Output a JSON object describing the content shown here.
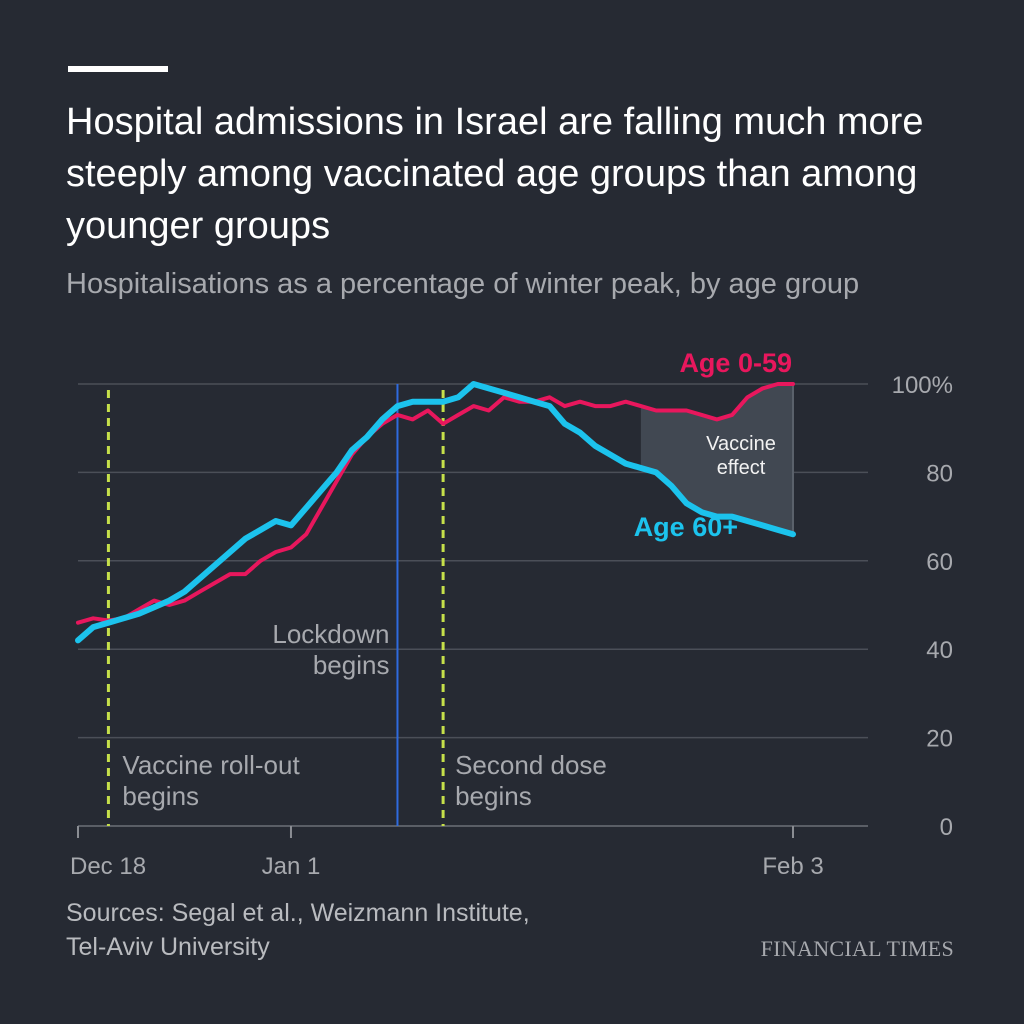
{
  "header": {
    "title": "Hospital admissions in Israel are falling much more steeply among vaccinated age groups than among younger groups",
    "subtitle": "Hospitalisations as a percentage of winter peak, by age group"
  },
  "footer": {
    "source_line1": "Sources: Segal et al., Weizmann Institute,",
    "source_line2": "Tel-Aviv University",
    "brand": "FINANCIAL TIMES"
  },
  "colors": {
    "background": "#262a33",
    "grid": "#4b4f58",
    "axis_text": "#a7a9ae",
    "young": "#e8175d",
    "old": "#1cc3ed",
    "event_dashed": "#c6e04a",
    "lockdown": "#2f6bdf",
    "effect_fill": "#414852"
  },
  "chart_data": {
    "type": "line",
    "x_type": "day_index",
    "x_range": [
      0,
      47
    ],
    "ylim": [
      0,
      100
    ],
    "y_ticks": [
      0,
      20,
      40,
      60,
      80,
      100
    ],
    "y_tick_labels": [
      "0",
      "20",
      "40",
      "60",
      "80",
      "100%"
    ],
    "x_ticks": [
      {
        "day": 0,
        "label": "Dec 18"
      },
      {
        "day": 14,
        "label": "Jan 1"
      },
      {
        "day": 47,
        "label": "Feb 3"
      }
    ],
    "series": [
      {
        "name": "Age 0-59",
        "values": [
          46,
          47,
          46.5,
          47,
          49,
          51,
          50,
          51,
          53,
          55,
          57,
          57,
          60,
          62,
          63,
          66,
          72,
          78,
          84,
          88,
          91,
          93,
          92,
          94,
          91,
          93,
          95,
          94,
          97,
          96,
          96,
          97,
          95,
          96,
          95,
          95,
          96,
          95,
          94,
          94,
          94,
          93,
          92,
          93,
          97,
          99,
          100,
          100
        ]
      },
      {
        "name": "Age 60+",
        "values": [
          42,
          45,
          46,
          47,
          48,
          49.5,
          51,
          53,
          56,
          59,
          62,
          65,
          67,
          69,
          68,
          72,
          76,
          80,
          85,
          88,
          92,
          95,
          96,
          96,
          96,
          97,
          100,
          99,
          98,
          97,
          96,
          95,
          91,
          89,
          86,
          84,
          82,
          81,
          80,
          77,
          73,
          71,
          70,
          70,
          69,
          68,
          67,
          66
        ]
      }
    ],
    "series_labels": {
      "young": "Age 0-59",
      "old": "Age 60+"
    },
    "annotations": {
      "vaccine_rollout": {
        "day": 2,
        "line1": "Vaccine roll-out",
        "line2": "begins"
      },
      "lockdown": {
        "day": 21,
        "line1": "Lockdown",
        "line2": "begins"
      },
      "second_dose": {
        "day": 24,
        "line1": "Second dose",
        "line2": "begins"
      },
      "effect": {
        "from_day": 37,
        "line1": "Vaccine",
        "line2": "effect"
      }
    }
  }
}
